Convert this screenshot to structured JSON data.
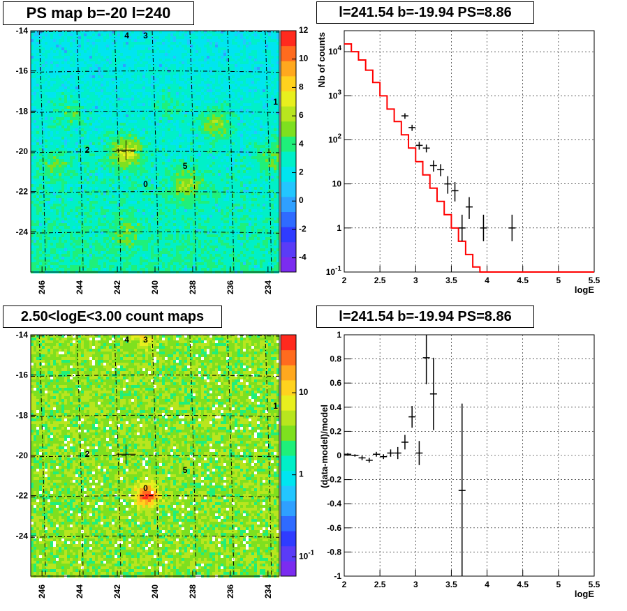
{
  "panels": {
    "tl_title": "PS map b=-20 l=240",
    "tr_title": "l=241.54 b=-19.94 PS=8.86",
    "bl_title": "2.50<logE<3.00 count maps",
    "br_title": "l=241.54 b=-19.94 PS=8.86"
  },
  "colors": {
    "data": "#000000",
    "model": "#ff0000",
    "map_background_top": "#00e5f0",
    "map_background_bottom": "#7ed321"
  },
  "chart_data": [
    {
      "type": "heatmap",
      "title": "PS map b=-20 l=240",
      "x_ticks": [
        "246",
        "244",
        "242",
        "240",
        "238",
        "236",
        "234"
      ],
      "y_ticks": [
        "-14",
        "-16",
        "-18",
        "-20",
        "-22",
        "-24"
      ],
      "xlim": [
        246.6,
        233.4
      ],
      "ylim": [
        -26,
        -14
      ],
      "colorbar_ticks": [
        "12",
        "10",
        "8",
        "6",
        "4",
        "2",
        "0",
        "-2",
        "-4"
      ],
      "colorbar_range": [
        -5,
        12
      ],
      "sources": [
        {
          "label": "4",
          "l": 241.5,
          "b": -14.2
        },
        {
          "label": "3",
          "l": 240.5,
          "b": -14.2
        },
        {
          "label": "1",
          "l": 233.6,
          "b": -17.5
        },
        {
          "label": "2",
          "l": 243.6,
          "b": -19.9
        },
        {
          "label": "5",
          "l": 238.4,
          "b": -20.7
        },
        {
          "label": "0",
          "l": 240.5,
          "b": -21.6
        }
      ]
    },
    {
      "type": "line",
      "title": "l=241.54 b=-19.94 PS=8.86",
      "xlabel": "logE",
      "ylabel": "Nb of counts",
      "xlim": [
        2,
        5.5
      ],
      "ylim": [
        0.1,
        30000
      ],
      "yscale": "log",
      "x_ticks": [
        "2",
        "2.5",
        "3",
        "3.5",
        "4",
        "4.5",
        "5",
        "5.5"
      ],
      "y_ticks": [
        "10^4",
        "10^3",
        "10^2",
        "10",
        "1",
        "10^-1"
      ],
      "grid": true,
      "series": [
        {
          "kind": "step",
          "bin_edges": [
            2.0,
            2.1,
            2.2,
            2.3,
            2.4,
            2.5,
            2.6,
            2.7,
            2.8,
            2.9,
            3.0,
            3.1,
            3.2,
            3.3,
            3.4,
            3.5,
            3.6,
            3.7,
            3.8,
            3.9,
            4.0,
            4.1,
            4.2,
            4.3,
            4.4,
            4.5,
            4.6,
            4.7,
            4.8,
            4.9,
            5.0,
            5.1,
            5.2,
            5.3,
            5.4,
            5.5
          ],
          "values": [
            15000,
            10000,
            6500,
            3800,
            2000,
            1000,
            500,
            260,
            130,
            65,
            32,
            16,
            8,
            4,
            2,
            1,
            0.5,
            0.25,
            0.13,
            0.1,
            0.1,
            0.1,
            0.1,
            0.1,
            0.1,
            0.1,
            0.1,
            0.1,
            0.1,
            0.1,
            0.1,
            0.1,
            0.1,
            0.1,
            0.1
          ]
        },
        {
          "kind": "points",
          "x": [
            2.85,
            2.95,
            3.05,
            3.15,
            3.25,
            3.35,
            3.45,
            3.55,
            3.65,
            3.75,
            3.95,
            4.35
          ],
          "y": [
            350,
            190,
            75,
            65,
            26,
            21,
            10,
            7,
            1,
            3,
            1,
            1
          ],
          "err_low": [
            300,
            160,
            60,
            52,
            19,
            15,
            6,
            4,
            0.5,
            1.6,
            0.5,
            0.5
          ],
          "err_high": [
            400,
            220,
            90,
            78,
            34,
            28,
            15,
            11,
            2,
            5,
            2,
            2
          ]
        }
      ]
    },
    {
      "type": "heatmap",
      "title": "2.50<logE<3.00 count maps",
      "x_ticks": [
        "246",
        "244",
        "242",
        "240",
        "238",
        "236",
        "234"
      ],
      "y_ticks": [
        "-14",
        "-16",
        "-18",
        "-20",
        "-22",
        "-24"
      ],
      "xlim": [
        246.6,
        233.4
      ],
      "ylim": [
        -26,
        -14
      ],
      "colorbar_ticks": [
        "10",
        "1",
        "10^-1"
      ],
      "colorbar_scale": "log",
      "sources": [
        {
          "label": "4",
          "l": 241.5,
          "b": -14.2
        },
        {
          "label": "3",
          "l": 240.5,
          "b": -14.2
        },
        {
          "label": "1",
          "l": 233.6,
          "b": -17.5
        },
        {
          "label": "2",
          "l": 243.6,
          "b": -19.9
        },
        {
          "label": "5",
          "l": 238.4,
          "b": -20.7
        },
        {
          "label": "0",
          "l": 240.5,
          "b": -21.6
        }
      ]
    },
    {
      "type": "scatter",
      "title": "l=241.54 b=-19.94 PS=8.86",
      "xlabel": "logE",
      "ylabel": "(data-model)/model",
      "xlim": [
        2,
        5.5
      ],
      "ylim": [
        -1,
        1
      ],
      "x_ticks": [
        "2",
        "2.5",
        "3",
        "3.5",
        "4",
        "4.5",
        "5",
        "5.5"
      ],
      "y_ticks": [
        "1",
        "0.8",
        "0.6",
        "0.4",
        "0.2",
        "0",
        "-0.2",
        "-0.4",
        "-0.6",
        "-0.8",
        "-1"
      ],
      "grid": true,
      "x": [
        2.05,
        2.15,
        2.25,
        2.35,
        2.45,
        2.55,
        2.65,
        2.75,
        2.85,
        2.95,
        3.05,
        3.15,
        3.25,
        3.65
      ],
      "y": [
        0.01,
        0.0,
        -0.02,
        -0.04,
        0.01,
        -0.01,
        0.02,
        0.02,
        0.11,
        0.32,
        0.02,
        0.81,
        0.51,
        -0.29
      ],
      "err": [
        0.01,
        0.01,
        0.02,
        0.02,
        0.02,
        0.02,
        0.03,
        0.05,
        0.06,
        0.09,
        0.1,
        0.22,
        0.3,
        0.72
      ]
    }
  ]
}
